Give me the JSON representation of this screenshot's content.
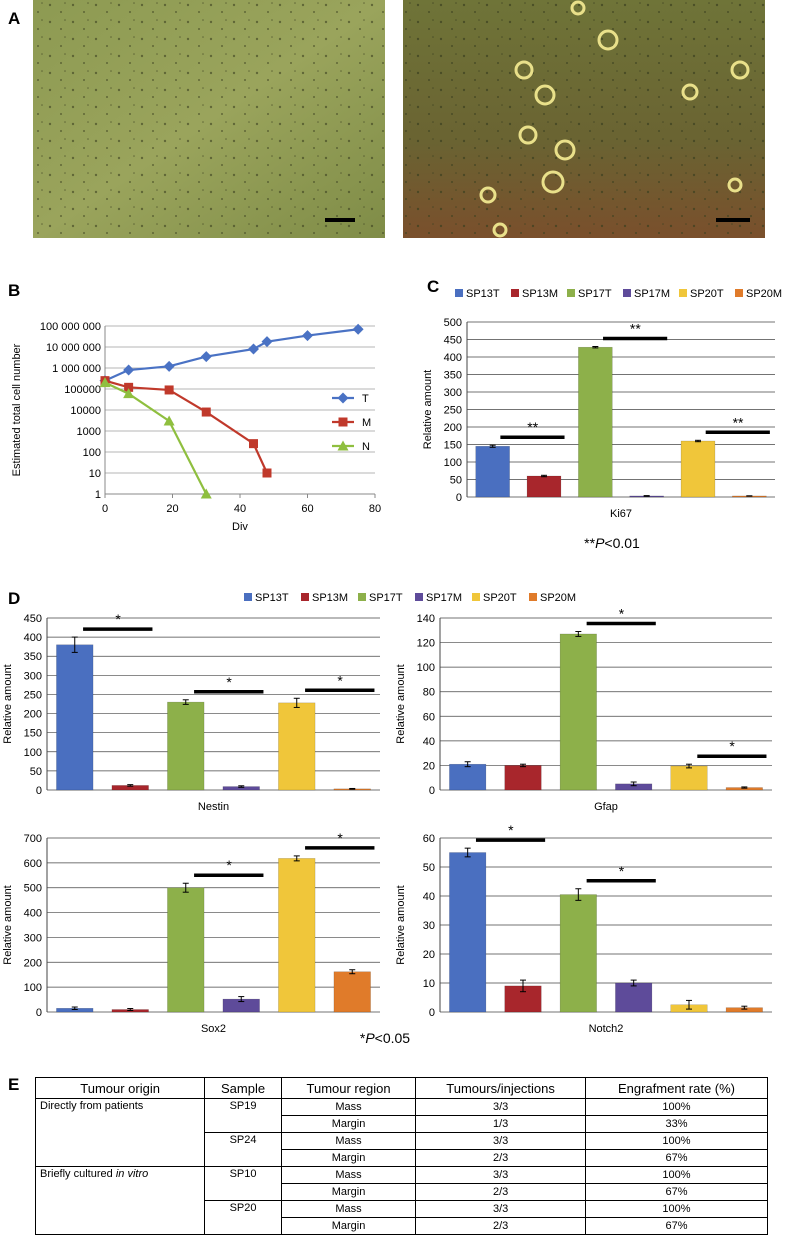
{
  "panel_labels": [
    "A",
    "B",
    "C",
    "D",
    "E"
  ],
  "chart_data": [
    {
      "type": "line",
      "ylabel": "Estimated total cell number",
      "xlabel": "Div",
      "xlim": [
        0,
        80
      ],
      "xticks": [
        0,
        20,
        40,
        60,
        80
      ],
      "ylim": [
        1,
        100000000
      ],
      "log_y": true,
      "grid": true,
      "legend": "right",
      "yticks": [
        1,
        10,
        100,
        1000,
        10000,
        100000,
        {
          "value": 1000000,
          "label": "1 000 000"
        },
        {
          "value": 10000000,
          "label": "10 000 000"
        },
        {
          "value": 100000000,
          "label": "100 000 000"
        }
      ],
      "series": [
        {
          "name": "T",
          "color": "#4a72c4",
          "marker": "diamond",
          "x": [
            0,
            7,
            19,
            30,
            44,
            48,
            60,
            75
          ],
          "values": [
            250000,
            800000,
            1200000,
            3500000,
            8000000,
            18000000,
            35000000,
            70000000
          ]
        },
        {
          "name": "M",
          "color": "#c0392b",
          "marker": "square",
          "x": [
            0,
            7,
            19,
            30,
            44,
            48
          ],
          "values": [
            250000,
            120000,
            90000,
            8000,
            250,
            10
          ]
        },
        {
          "name": "N",
          "color": "#8fbf3f",
          "marker": "triangle",
          "x": [
            0,
            7,
            19,
            30
          ],
          "values": [
            200000,
            60000,
            3000,
            1
          ]
        }
      ]
    },
    {
      "type": "bar",
      "grid": true,
      "legend": "top",
      "categories": [
        "Ki67"
      ],
      "series": [
        {
          "name": "SP13T",
          "color": "#4a6fc0",
          "values": [
            145
          ],
          "errors": [
            3
          ]
        },
        {
          "name": "SP13M",
          "color": "#a8262c",
          "values": [
            60
          ],
          "errors": [
            2
          ]
        },
        {
          "name": "SP17T",
          "color": "#8db04a",
          "values": [
            428
          ],
          "errors": [
            2
          ]
        },
        {
          "name": "SP17M",
          "color": "#5e4b9a",
          "values": [
            3
          ],
          "errors": [
            1
          ]
        },
        {
          "name": "SP20T",
          "color": "#f0c63a",
          "values": [
            160
          ],
          "errors": [
            2
          ]
        },
        {
          "name": "SP20M",
          "color": "#e07b2a",
          "values": [
            3
          ],
          "errors": [
            0.5
          ]
        }
      ],
      "facets": [
        {
          "ylabel": "Relative amount",
          "ylim": [
            0,
            500
          ],
          "yticks": [
            0,
            50,
            100,
            150,
            200,
            250,
            300,
            350,
            400,
            450,
            500
          ],
          "annotations": [
            "**",
            "**",
            "**"
          ]
        }
      ],
      "note": [
        "**",
        "P",
        "<0.01"
      ]
    },
    {
      "type": "bar",
      "grid": true,
      "legend": "top",
      "categories": [
        "Nestin",
        "Gfap",
        "Sox2",
        "Notch2"
      ],
      "series": [
        {
          "name": "SP13T",
          "color": "#4a6fc0",
          "values": [
            380,
            21,
            15,
            55
          ],
          "errors": [
            20,
            2,
            5,
            1.5
          ]
        },
        {
          "name": "SP13M",
          "color": "#a8262c",
          "values": [
            12,
            20,
            10,
            9
          ],
          "errors": [
            2,
            1,
            4,
            2
          ]
        },
        {
          "name": "SP17T",
          "color": "#8db04a",
          "values": [
            230,
            127,
            500,
            40.5
          ],
          "errors": [
            6,
            2,
            18,
            2
          ]
        },
        {
          "name": "SP17M",
          "color": "#5e4b9a",
          "values": [
            9,
            5,
            52,
            10
          ],
          "errors": [
            2,
            1.5,
            10,
            1
          ]
        },
        {
          "name": "SP20T",
          "color": "#f0c63a",
          "values": [
            228,
            19.5,
            618,
            2.5
          ],
          "errors": [
            12,
            1.5,
            10,
            1.5
          ]
        },
        {
          "name": "SP20M",
          "color": "#e07b2a",
          "values": [
            3,
            2,
            162,
            1.5
          ],
          "errors": [
            1,
            0.5,
            8,
            0.5
          ]
        }
      ],
      "facets": [
        {
          "ylabel": "Relative amount",
          "ylim": [
            0,
            450
          ],
          "yticks": [
            0,
            50,
            100,
            150,
            200,
            250,
            300,
            350,
            400,
            450
          ],
          "annotations": [
            "*",
            "*",
            "*"
          ]
        },
        {
          "ylabel": "Relative amount",
          "ylim": [
            0,
            140
          ],
          "yticks": [
            0,
            20,
            40,
            60,
            80,
            100,
            120,
            140
          ],
          "annotations": [
            "*",
            "*"
          ]
        },
        {
          "ylabel": "Relative amount",
          "ylim": [
            0,
            700
          ],
          "yticks": [
            0,
            100,
            200,
            300,
            400,
            500,
            600,
            700
          ],
          "annotations": [
            "*",
            "*"
          ]
        },
        {
          "ylabel": "Relative amount",
          "ylim": [
            0,
            60
          ],
          "yticks": [
            0,
            10,
            20,
            30,
            40,
            50,
            60
          ],
          "annotations": [
            "*",
            "*"
          ]
        }
      ],
      "note": [
        "*",
        "P",
        "<0.05"
      ]
    }
  ],
  "table": {
    "header": [
      "Tumour origin",
      "Sample",
      "Tumour region",
      "Tumours/injections",
      "Engrafment rate (%)"
    ],
    "groups": [
      {
        "origin": [
          "Directly from patients"
        ],
        "samples": [
          {
            "name": "SP19",
            "rows": [
              [
                "Mass",
                "3/3",
                "100%"
              ],
              [
                "Margin",
                "1/3",
                "33%"
              ]
            ]
          },
          {
            "name": "SP24",
            "rows": [
              [
                "Mass",
                "3/3",
                "100%"
              ],
              [
                "Margin",
                "2/3",
                "67%"
              ]
            ]
          }
        ]
      },
      {
        "origin": [
          "Briefly cultured",
          "in vitro"
        ],
        "samples": [
          {
            "name": "SP10",
            "rows": [
              [
                "Mass",
                "3/3",
                "100%"
              ],
              [
                "Margin",
                "2/3",
                "67%"
              ]
            ]
          },
          {
            "name": "SP20",
            "rows": [
              [
                "Mass",
                "3/3",
                "100%"
              ],
              [
                "Margin",
                "2/3",
                "67%"
              ]
            ]
          }
        ]
      }
    ]
  }
}
